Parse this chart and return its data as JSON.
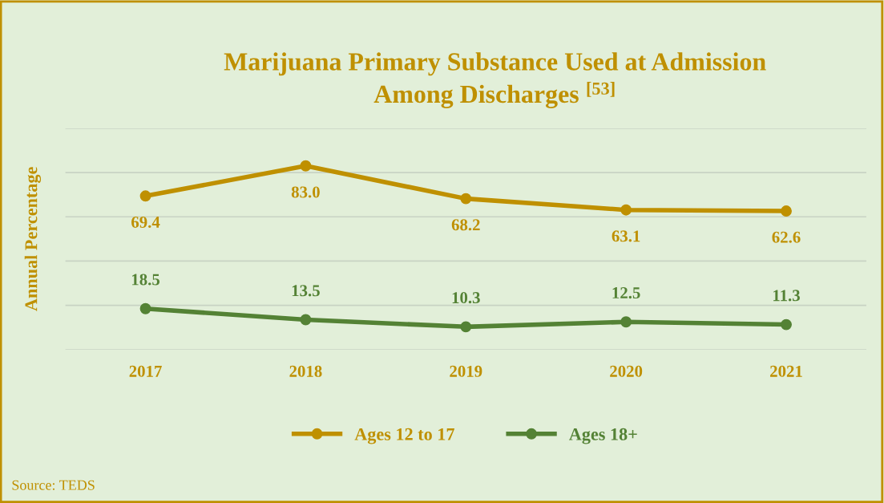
{
  "chart_data": {
    "type": "line",
    "title": "Marijuana Primary Substance Used at Admission\nAmong Discharges $^{[53]}$",
    "ylabel": "Annual Percentage",
    "categories": [
      "2017",
      "2018",
      "2019",
      "2020",
      "2021"
    ],
    "series": [
      {
        "name": "Ages 12 to 17",
        "color": "#bf9000",
        "values": [
          69.4,
          83.0,
          68.2,
          63.1,
          62.6
        ],
        "value_labels": [
          "69.4",
          "83.0",
          "68.2",
          "63.1",
          "62.6"
        ]
      },
      {
        "name": "Ages 18+",
        "color": "#548235",
        "values": [
          18.5,
          13.5,
          10.3,
          12.5,
          11.3
        ],
        "value_labels": [
          "18.5",
          "13.5",
          "10.3",
          "12.5",
          "11.3"
        ]
      }
    ],
    "ylim": [
      0,
      100
    ],
    "yticks": [
      {
        "value": 0,
        "label": null
      },
      {
        "value": 20,
        "label": null
      },
      {
        "value": 40,
        "label": null
      },
      {
        "value": 60,
        "label": null
      },
      {
        "value": 80,
        "label": null
      },
      {
        "value": 100,
        "label": null
      }
    ],
    "grid": "y",
    "legend": "bottom",
    "marker": "circle",
    "line_style": "solid",
    "annotations": [
      "Source: TEDS"
    ]
  }
}
